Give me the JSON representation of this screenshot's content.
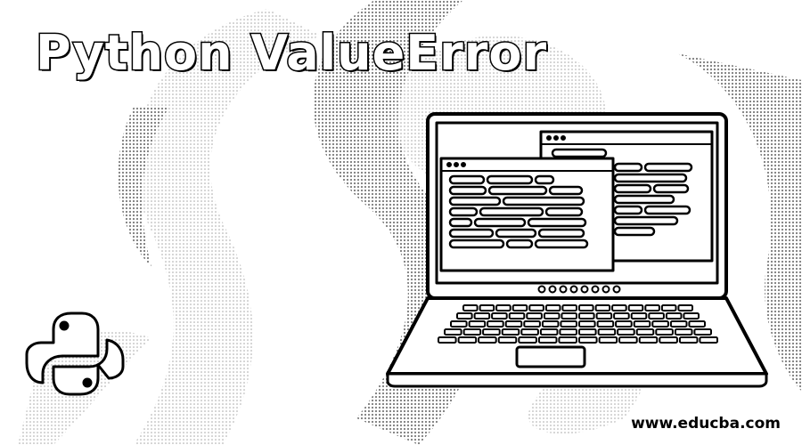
{
  "banner": {
    "title": "Python ValueError",
    "site_url": "www.educba.com"
  },
  "icons": {
    "python_logo": "python-logo-icon",
    "laptop": "laptop-icon"
  },
  "colors": {
    "ink": "#000000",
    "paper": "#ffffff",
    "halftone": "#8a8a8a"
  }
}
